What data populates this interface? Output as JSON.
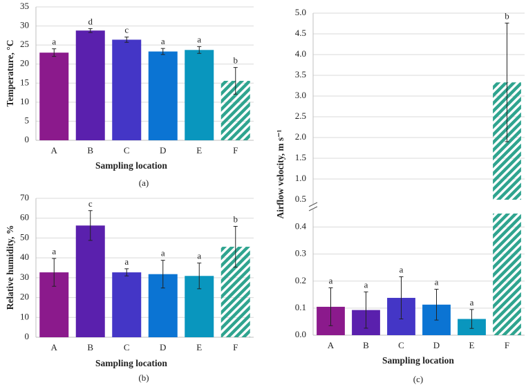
{
  "chart_data": [
    {
      "type": "bar",
      "ylabel": "Temperature, °C",
      "xlabel": "Sampling location",
      "caption": "(a)",
      "categories": [
        "A",
        "B",
        "C",
        "D",
        "E",
        "F"
      ],
      "values": [
        23,
        28.8,
        26.4,
        23.3,
        23.7,
        15.6
      ],
      "errors": [
        1,
        0.5,
        0.7,
        0.8,
        0.9,
        3.5
      ],
      "annotations": [
        "a",
        "d",
        "c",
        "a",
        "a",
        "b"
      ],
      "colors": [
        "#8b1a8c",
        "#5a20ad",
        "#4436c6",
        "#0b74d3",
        "#0996be",
        "#2fa48f"
      ],
      "bar_styles": [
        "solid",
        "solid",
        "solid",
        "solid",
        "solid",
        "hatched"
      ],
      "ylim": [
        0,
        35
      ],
      "yticks": [
        0,
        5,
        10,
        15,
        20,
        25,
        30,
        35
      ],
      "grid": true
    },
    {
      "type": "bar",
      "ylabel": "Relative humidity, %",
      "xlabel": "Sampling location",
      "caption": "(b)",
      "categories": [
        "A",
        "B",
        "C",
        "D",
        "E",
        "F"
      ],
      "values": [
        32.7,
        56.3,
        32.7,
        31.8,
        30.9,
        45.6
      ],
      "errors": [
        7,
        7.5,
        1.8,
        7,
        6.5,
        10.3
      ],
      "annotations": [
        "a",
        "c",
        "a",
        "a",
        "a",
        "b"
      ],
      "colors": [
        "#8b1a8c",
        "#5a20ad",
        "#4436c6",
        "#0b74d3",
        "#0996be",
        "#2fa48f"
      ],
      "bar_styles": [
        "solid",
        "solid",
        "solid",
        "solid",
        "solid",
        "hatched"
      ],
      "ylim": [
        0,
        70
      ],
      "yticks": [
        0,
        10,
        20,
        30,
        40,
        50,
        60,
        70
      ],
      "grid": true
    },
    {
      "type": "bar",
      "ylabel": "Airflow velocity, m s⁻¹",
      "xlabel": "Sampling location",
      "caption": "(c)",
      "categories": [
        "A",
        "B",
        "C",
        "D",
        "E",
        "F"
      ],
      "values": [
        0.105,
        0.093,
        0.138,
        0.113,
        0.06,
        3.33
      ],
      "errors": [
        0.07,
        0.067,
        0.078,
        0.057,
        0.035,
        1.43
      ],
      "annotations": [
        "a",
        "a",
        "a",
        "a",
        "a",
        "b"
      ],
      "colors": [
        "#8b1a8c",
        "#5a20ad",
        "#4436c6",
        "#0b74d3",
        "#0996be",
        "#2fa48f"
      ],
      "bar_styles": [
        "solid",
        "solid",
        "solid",
        "solid",
        "solid",
        "hatched"
      ],
      "segments": [
        {
          "ylim": [
            0,
            0.45
          ],
          "yticks": [
            {
              "value": 0,
              "label": "0.0"
            },
            0.1,
            0.2,
            0.3,
            0.4
          ]
        },
        {
          "ylim": [
            0.5,
            5
          ],
          "yticks": [
            0.5,
            {
              "value": 1,
              "label": "1.0"
            },
            1.5,
            {
              "value": 2,
              "label": "2.0"
            },
            2.5,
            {
              "value": 3,
              "label": "3.0"
            },
            3.5,
            {
              "value": 4,
              "label": "4.0"
            },
            4.5,
            {
              "value": 5,
              "label": "5.0"
            }
          ]
        }
      ],
      "grid": true
    }
  ]
}
